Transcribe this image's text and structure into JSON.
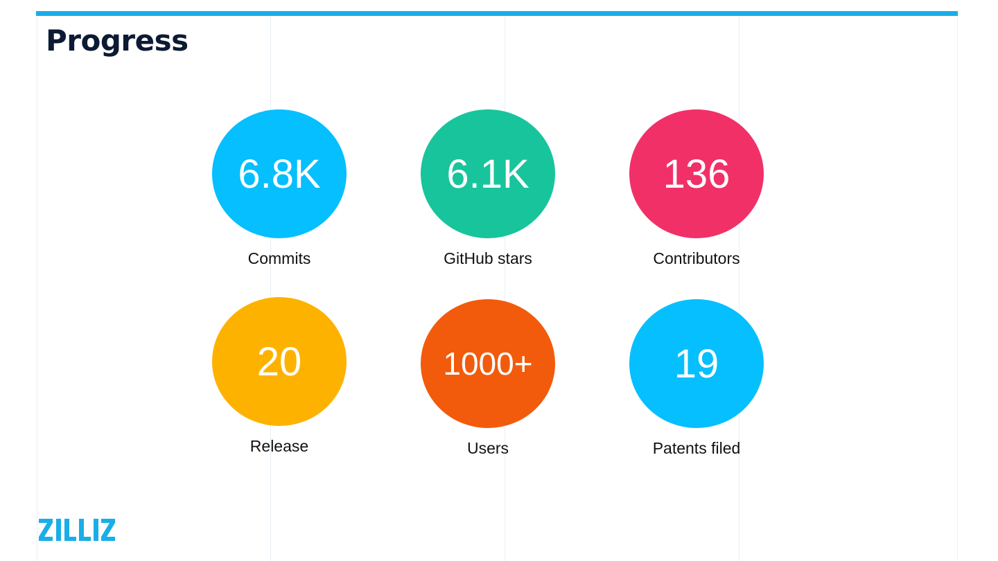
{
  "slide": {
    "title": "Progress"
  },
  "stats": [
    {
      "value": "6.8K",
      "label": "Commits",
      "color": "#06bffe"
    },
    {
      "value": "6.1K",
      "label": "GitHub stars",
      "color": "#18c49c"
    },
    {
      "value": "136",
      "label": "Contributors",
      "color": "#f23068"
    },
    {
      "value": "20",
      "label": "Release",
      "color": "#feb200"
    },
    {
      "value": "1000+",
      "label": "Users",
      "color": "#f25b0b"
    },
    {
      "value": "19",
      "label": "Patents filed",
      "color": "#06bffe"
    }
  ],
  "brand": {
    "logo_text": "ZILLIZ",
    "accent_color": "#1aaee8",
    "logo_color": "#1aaee8"
  }
}
